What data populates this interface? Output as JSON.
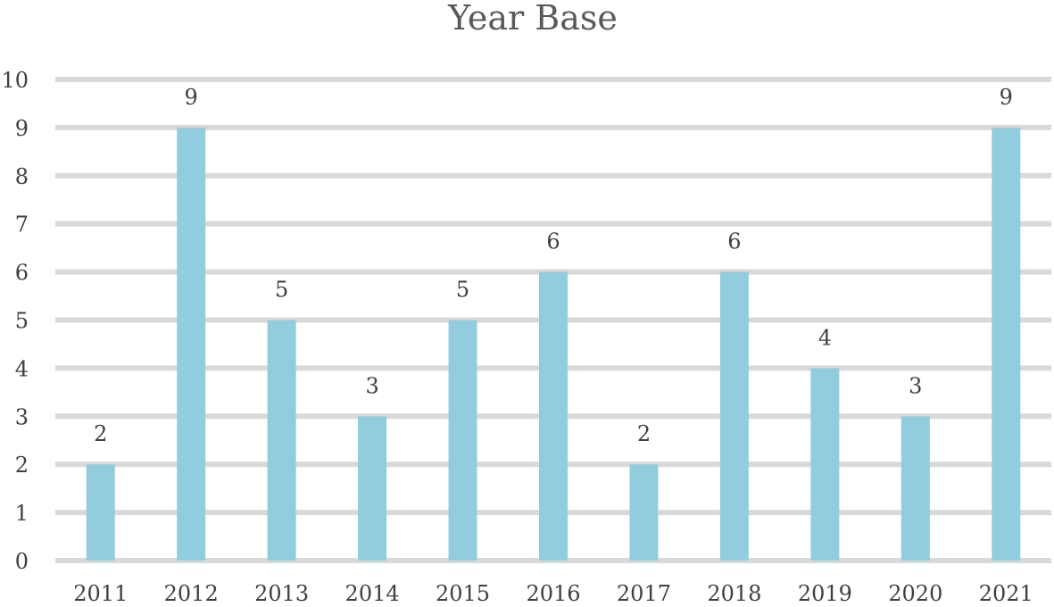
{
  "chart_data": {
    "type": "bar",
    "title": "Year Base",
    "xlabel": "",
    "ylabel": "",
    "categories": [
      "2011",
      "2012",
      "2013",
      "2014",
      "2015",
      "2016",
      "2017",
      "2018",
      "2019",
      "2020",
      "2021"
    ],
    "values": [
      2,
      9,
      5,
      3,
      5,
      6,
      2,
      6,
      4,
      3,
      9
    ],
    "ylim": [
      0,
      10
    ],
    "yticks": [
      0,
      1,
      2,
      3,
      4,
      5,
      6,
      7,
      8,
      9,
      10
    ],
    "grid": true,
    "legend": "none",
    "data_labels": true,
    "colors": {
      "bar": "#92cddf",
      "grid": "#d9d9d9",
      "text": "#404040",
      "title": "#595959"
    }
  }
}
